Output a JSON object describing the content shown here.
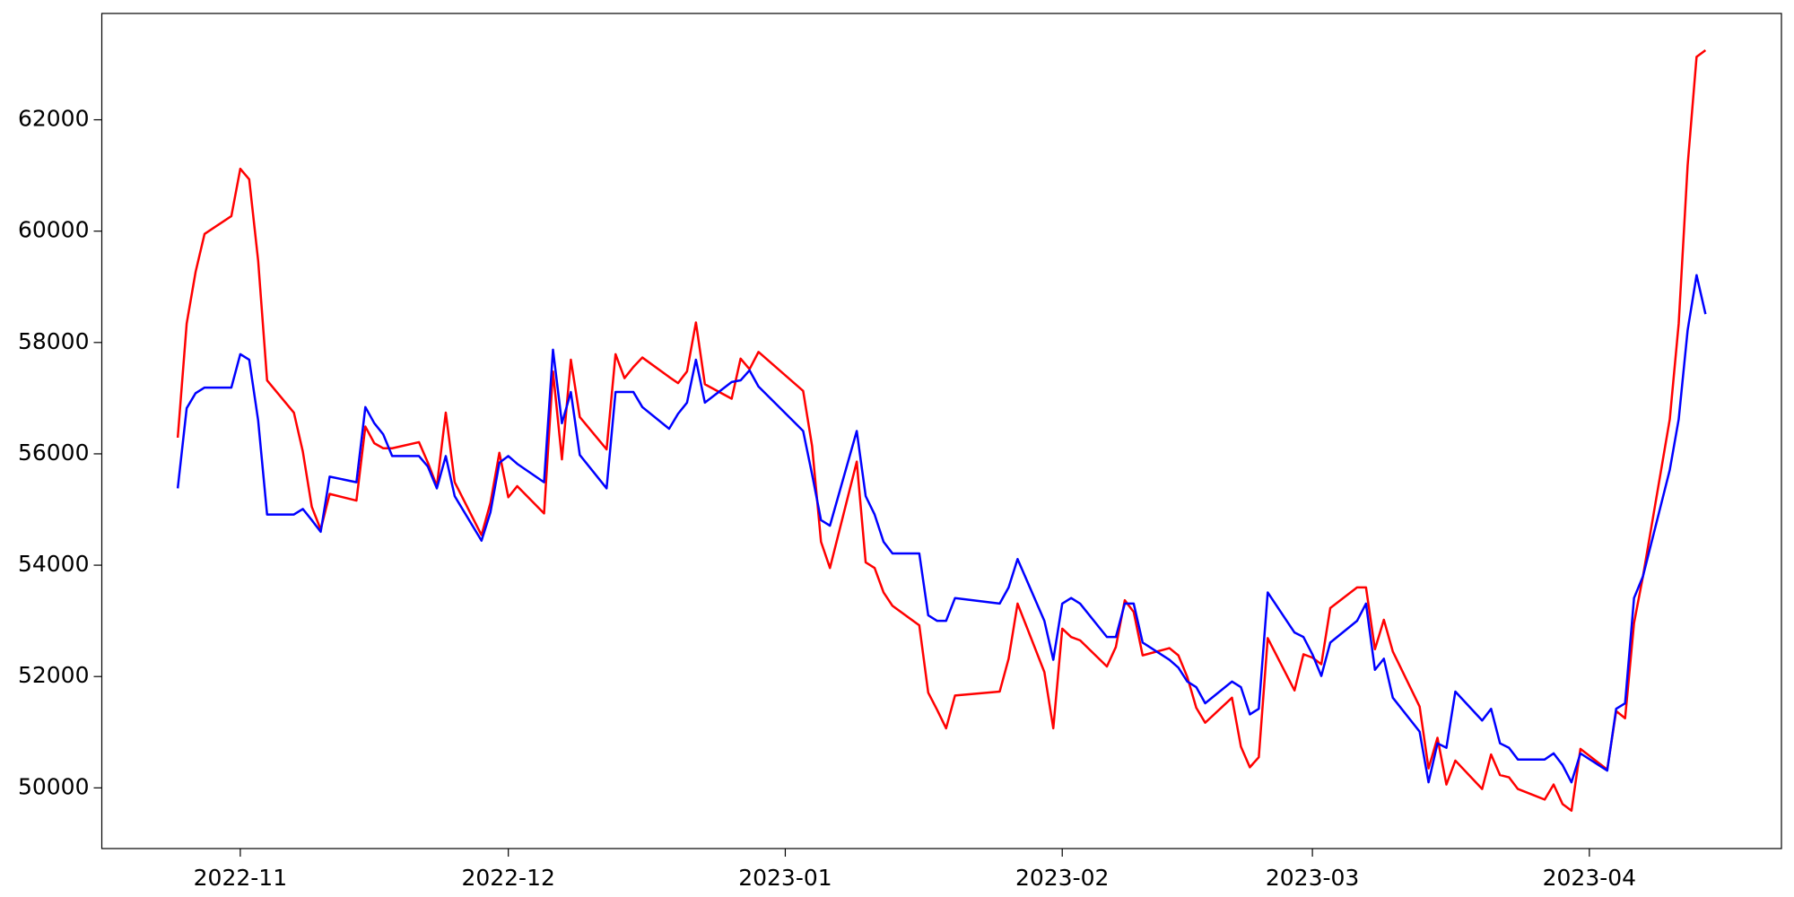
{
  "chart_data": {
    "type": "line",
    "x": [
      19290,
      19291,
      19292,
      19293,
      19296,
      19297,
      19298,
      19299,
      19300,
      19303,
      19304,
      19305,
      19306,
      19307,
      19310,
      19311,
      19312,
      19313,
      19314,
      19317,
      19318,
      19319,
      19320,
      19321,
      19324,
      19325,
      19326,
      19327,
      19328,
      19331,
      19332,
      19333,
      19334,
      19335,
      19338,
      19339,
      19340,
      19341,
      19342,
      19345,
      19346,
      19347,
      19348,
      19349,
      19352,
      19353,
      19354,
      19355,
      19360,
      19361,
      19362,
      19363,
      19366,
      19367,
      19368,
      19369,
      19370,
      19373,
      19374,
      19375,
      19376,
      19377,
      19382,
      19383,
      19384,
      19387,
      19388,
      19389,
      19390,
      19391,
      19394,
      19395,
      19396,
      19397,
      19398,
      19401,
      19402,
      19403,
      19404,
      19405,
      19408,
      19409,
      19410,
      19411,
      19412,
      19415,
      19416,
      19417,
      19418,
      19419,
      19422,
      19423,
      19424,
      19425,
      19426,
      19429,
      19430,
      19431,
      19432,
      19433,
      19436,
      19437,
      19438,
      19439,
      19440,
      19443,
      19444,
      19445,
      19446,
      19447,
      19450,
      19451,
      19452,
      19453,
      19454,
      19457,
      19458,
      19459,
      19460,
      19461
    ],
    "series": [
      {
        "color": "#ff0000",
        "values": [
          56290,
          58340,
          59270,
          59950,
          60270,
          61120,
          60930,
          59470,
          57320,
          56740,
          56040,
          55050,
          54640,
          55280,
          55160,
          56490,
          56190,
          56100,
          56100,
          56210,
          55840,
          55420,
          56740,
          55490,
          54540,
          55120,
          56020,
          55220,
          55420,
          54930,
          57480,
          55900,
          57690,
          56660,
          56080,
          57790,
          57360,
          57560,
          57730,
          57380,
          57270,
          57480,
          58360,
          57250,
          56990,
          57710,
          57520,
          57830,
          57130,
          56140,
          54420,
          53950,
          55860,
          54050,
          53950,
          53510,
          53270,
          52920,
          51710,
          51400,
          51070,
          51660,
          51730,
          52320,
          53310,
          52080,
          51070,
          52860,
          52710,
          52650,
          52180,
          52530,
          53370,
          53160,
          52380,
          52510,
          52380,
          51990,
          51440,
          51170,
          51620,
          50740,
          50370,
          50550,
          52690,
          51750,
          52400,
          52340,
          52220,
          53230,
          53600,
          53600,
          52490,
          53020,
          52450,
          51460,
          50350,
          50900,
          50060,
          50490,
          49980,
          50600,
          50230,
          50190,
          49980,
          49790,
          50060,
          49710,
          49590,
          50700,
          50330,
          51380,
          51250,
          52960,
          53800,
          56620,
          58340,
          61180,
          63130,
          63250
        ]
      },
      {
        "color": "#0000ff",
        "values": [
          55380,
          56820,
          57090,
          57190,
          57190,
          57790,
          57690,
          56600,
          54910,
          54910,
          55010,
          54810,
          54600,
          55590,
          55490,
          56840,
          56550,
          56350,
          55960,
          55960,
          55770,
          55380,
          55960,
          55240,
          54440,
          54950,
          55840,
          55960,
          55820,
          55490,
          57870,
          56550,
          57110,
          55980,
          55380,
          57110,
          57110,
          57110,
          56840,
          56450,
          56720,
          56920,
          57690,
          56920,
          57290,
          57320,
          57500,
          57210,
          56410,
          55630,
          54810,
          54710,
          56410,
          55240,
          54910,
          54420,
          54210,
          54210,
          53100,
          53000,
          53000,
          53410,
          53310,
          53600,
          54110,
          53000,
          52300,
          53310,
          53410,
          53310,
          52710,
          52710,
          53310,
          53310,
          52610,
          52300,
          52160,
          51910,
          51810,
          51520,
          51910,
          51810,
          51320,
          51420,
          53510,
          52790,
          52710,
          52400,
          52010,
          52610,
          53000,
          53310,
          52120,
          52320,
          51620,
          51010,
          50100,
          50800,
          50720,
          51730,
          51210,
          51420,
          50800,
          50720,
          50510,
          50510,
          50620,
          50410,
          50100,
          50620,
          50310,
          51420,
          51520,
          53410,
          53800,
          55710,
          56620,
          58220,
          59210,
          58510
        ]
      }
    ],
    "xlim": [
      19281.5,
      19469.5
    ],
    "xticks": [
      {
        "value": 19297,
        "label": "2022-11"
      },
      {
        "value": 19327,
        "label": "2022-12"
      },
      {
        "value": 19358,
        "label": "2023-01"
      },
      {
        "value": 19389,
        "label": "2023-02"
      },
      {
        "value": 19417,
        "label": "2023-03"
      },
      {
        "value": 19448,
        "label": "2023-04"
      }
    ],
    "ylim": [
      48910,
      63910
    ],
    "yticks": [
      50000,
      52000,
      54000,
      56000,
      58000,
      60000,
      62000
    ]
  }
}
